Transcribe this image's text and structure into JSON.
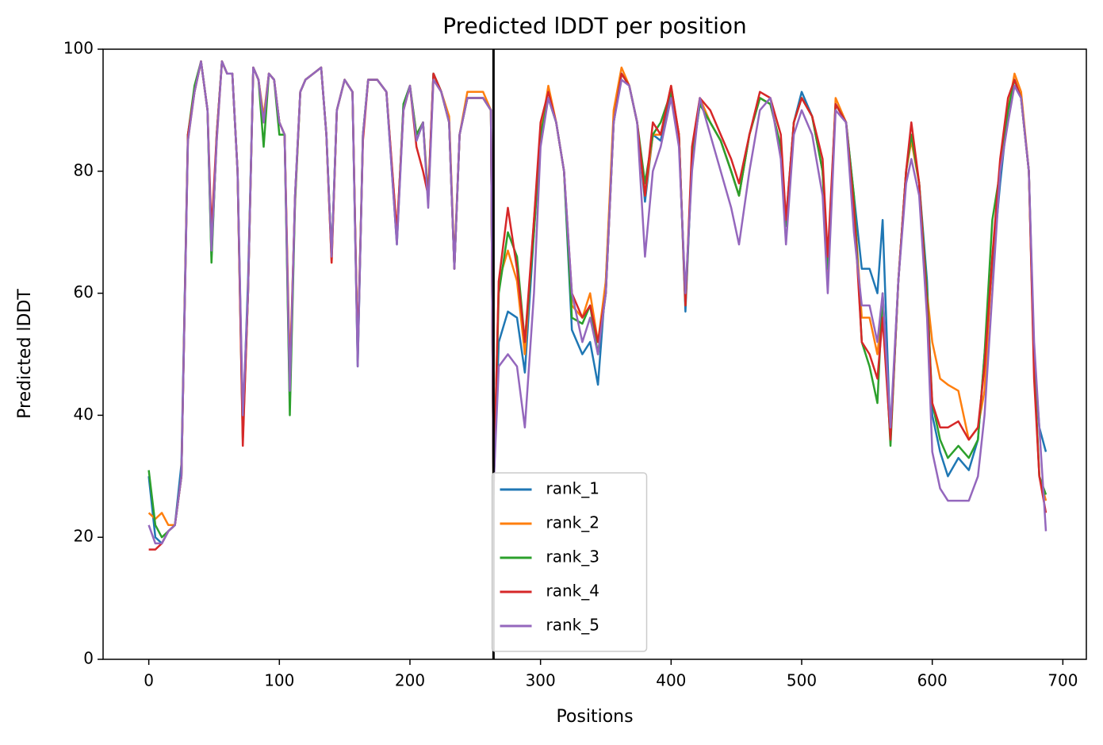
{
  "chart_data": {
    "type": "line",
    "title": "Predicted lDDT per position",
    "xlabel": "Positions",
    "ylabel": "Predicted lDDT",
    "x": [
      0,
      5,
      10,
      15,
      20,
      25,
      30,
      35,
      40,
      45,
      48,
      52,
      56,
      60,
      64,
      68,
      72,
      76,
      80,
      84,
      88,
      92,
      96,
      100,
      104,
      108,
      112,
      116,
      120,
      126,
      132,
      136,
      140,
      144,
      150,
      156,
      160,
      164,
      168,
      175,
      182,
      190,
      195,
      200,
      205,
      210,
      214,
      218,
      224,
      230,
      234,
      238,
      244,
      250,
      256,
      262,
      264,
      268,
      275,
      282,
      288,
      295,
      300,
      306,
      312,
      318,
      324,
      332,
      338,
      344,
      350,
      356,
      362,
      368,
      374,
      380,
      386,
      392,
      400,
      406,
      411,
      416,
      422,
      430,
      438,
      446,
      452,
      460,
      468,
      476,
      484,
      488,
      494,
      500,
      508,
      516,
      520,
      526,
      534,
      540,
      546,
      552,
      558,
      562,
      568,
      574,
      580,
      584,
      590,
      596,
      600,
      606,
      612,
      620,
      628,
      635,
      640,
      646,
      652,
      658,
      663,
      668,
      674,
      678,
      682,
      687
    ],
    "series": [
      {
        "name": "rank_1",
        "color": "#1f77b4",
        "values": [
          30,
          20,
          19,
          21,
          22,
          32,
          86,
          93,
          98,
          90,
          66,
          86,
          98,
          96,
          96,
          80,
          38,
          62,
          97,
          95,
          88,
          96,
          95,
          88,
          86,
          42,
          76,
          93,
          95,
          96,
          97,
          86,
          66,
          90,
          95,
          93,
          48,
          86,
          95,
          95,
          93,
          68,
          91,
          94,
          85,
          88,
          75,
          96,
          93,
          88,
          64,
          86,
          92,
          92,
          92,
          90,
          28,
          52,
          57,
          56,
          47,
          70,
          86,
          92,
          88,
          80,
          54,
          50,
          52,
          45,
          62,
          88,
          96,
          94,
          88,
          75,
          86,
          85,
          93,
          86,
          57,
          82,
          91,
          88,
          85,
          80,
          76,
          86,
          92,
          91,
          84,
          72,
          88,
          93,
          89,
          80,
          64,
          91,
          88,
          76,
          64,
          64,
          60,
          72,
          36,
          62,
          80,
          86,
          78,
          62,
          40,
          34,
          30,
          33,
          31,
          36,
          50,
          64,
          78,
          90,
          94,
          92,
          80,
          50,
          38,
          34
        ]
      },
      {
        "name": "rank_2",
        "color": "#ff7f0e",
        "values": [
          24,
          23,
          24,
          22,
          22,
          30,
          85,
          93,
          98,
          90,
          67,
          85,
          98,
          96,
          96,
          80,
          37,
          60,
          97,
          95,
          89,
          96,
          95,
          88,
          86,
          47,
          75,
          93,
          95,
          96,
          97,
          86,
          65,
          90,
          95,
          93,
          50,
          86,
          95,
          95,
          93,
          70,
          90,
          94,
          86,
          88,
          76,
          95,
          93,
          89,
          65,
          86,
          93,
          93,
          93,
          90,
          27,
          62,
          67,
          62,
          50,
          72,
          86,
          94,
          88,
          80,
          58,
          56,
          60,
          52,
          62,
          90,
          97,
          94,
          88,
          76,
          86,
          86,
          94,
          86,
          58,
          83,
          92,
          88,
          85,
          80,
          76,
          86,
          92,
          91,
          84,
          71,
          88,
          92,
          89,
          80,
          62,
          92,
          88,
          75,
          56,
          56,
          50,
          58,
          36,
          62,
          80,
          85,
          78,
          60,
          52,
          46,
          45,
          44,
          36,
          38,
          44,
          66,
          80,
          90,
          96,
          93,
          80,
          48,
          30,
          26
        ]
      },
      {
        "name": "rank_3",
        "color": "#2ca02c",
        "values": [
          31,
          22,
          20,
          21,
          22,
          30,
          86,
          94,
          98,
          90,
          65,
          86,
          98,
          96,
          96,
          80,
          36,
          60,
          97,
          95,
          84,
          96,
          95,
          86,
          86,
          40,
          75,
          93,
          95,
          96,
          97,
          86,
          66,
          90,
          95,
          93,
          49,
          86,
          95,
          95,
          93,
          69,
          91,
          94,
          86,
          88,
          75,
          96,
          93,
          88,
          64,
          86,
          92,
          92,
          92,
          90,
          27,
          60,
          70,
          66,
          52,
          70,
          86,
          92,
          88,
          80,
          56,
          55,
          58,
          50,
          60,
          88,
          96,
          94,
          88,
          78,
          86,
          88,
          93,
          86,
          58,
          82,
          91,
          88,
          85,
          80,
          76,
          86,
          92,
          91,
          84,
          71,
          88,
          92,
          89,
          80,
          64,
          91,
          88,
          76,
          52,
          48,
          42,
          60,
          35,
          62,
          80,
          86,
          78,
          60,
          42,
          36,
          33,
          35,
          33,
          36,
          50,
          72,
          80,
          90,
          95,
          92,
          80,
          48,
          30,
          27
        ]
      },
      {
        "name": "rank_4",
        "color": "#d62728",
        "values": [
          18,
          18,
          19,
          21,
          22,
          30,
          86,
          93,
          98,
          90,
          70,
          86,
          98,
          96,
          96,
          80,
          35,
          60,
          97,
          95,
          88,
          96,
          95,
          88,
          86,
          45,
          76,
          93,
          95,
          96,
          97,
          86,
          65,
          90,
          95,
          93,
          50,
          85,
          95,
          95,
          93,
          70,
          90,
          94,
          84,
          80,
          76,
          96,
          93,
          88,
          64,
          86,
          92,
          92,
          92,
          90,
          27,
          62,
          74,
          64,
          52,
          72,
          88,
          93,
          88,
          80,
          60,
          56,
          58,
          52,
          60,
          88,
          96,
          94,
          88,
          76,
          88,
          86,
          94,
          86,
          58,
          84,
          92,
          90,
          86,
          82,
          78,
          86,
          93,
          92,
          86,
          72,
          88,
          92,
          89,
          82,
          66,
          91,
          88,
          74,
          52,
          50,
          46,
          56,
          36,
          62,
          80,
          88,
          78,
          58,
          42,
          38,
          38,
          39,
          36,
          38,
          48,
          66,
          82,
          92,
          95,
          92,
          80,
          46,
          30,
          24
        ]
      },
      {
        "name": "rank_5",
        "color": "#9467bd",
        "values": [
          22,
          19,
          19,
          21,
          22,
          30,
          85,
          93,
          98,
          90,
          67,
          85,
          98,
          96,
          96,
          80,
          40,
          60,
          97,
          95,
          88,
          96,
          95,
          88,
          86,
          44,
          76,
          93,
          95,
          96,
          97,
          86,
          66,
          90,
          95,
          93,
          48,
          86,
          95,
          95,
          93,
          68,
          90,
          94,
          85,
          88,
          74,
          95,
          93,
          88,
          64,
          86,
          92,
          92,
          92,
          90,
          28,
          48,
          50,
          48,
          38,
          60,
          84,
          92,
          88,
          80,
          60,
          52,
          56,
          50,
          60,
          88,
          95,
          94,
          88,
          66,
          80,
          84,
          92,
          84,
          60,
          80,
          92,
          86,
          80,
          74,
          68,
          80,
          90,
          92,
          82,
          68,
          86,
          90,
          86,
          76,
          60,
          90,
          88,
          70,
          58,
          58,
          52,
          60,
          38,
          62,
          78,
          82,
          76,
          56,
          34,
          28,
          26,
          26,
          26,
          30,
          40,
          60,
          80,
          88,
          94,
          92,
          80,
          52,
          38,
          21
        ]
      }
    ],
    "vline": 264,
    "xlim": [
      -35,
      718
    ],
    "xticks": [
      0,
      100,
      200,
      300,
      400,
      500,
      600,
      700
    ],
    "ylim": [
      0,
      100
    ],
    "yticks": [
      0,
      20,
      40,
      60,
      80,
      100
    ],
    "legend": "lower center"
  }
}
